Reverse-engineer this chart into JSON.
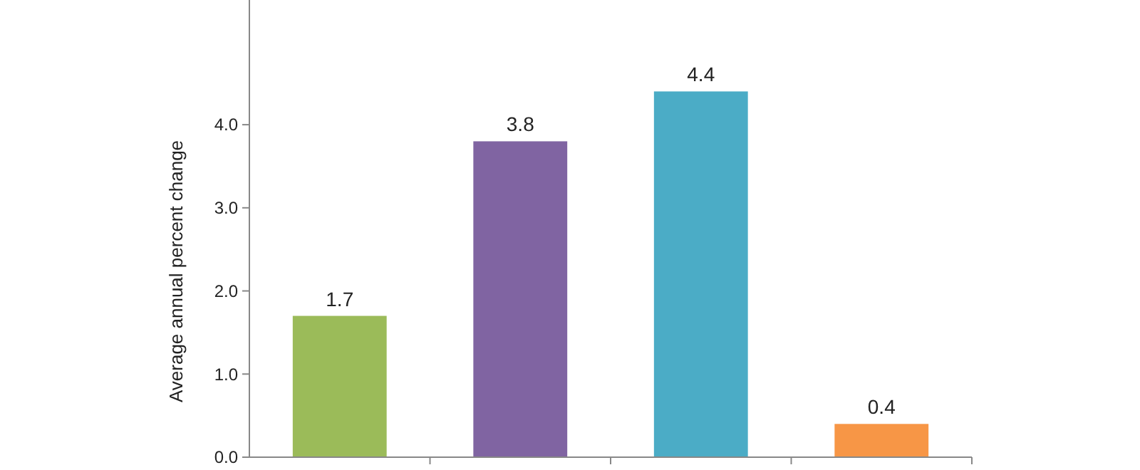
{
  "chart_data": {
    "type": "bar",
    "ylabel": "Average annual percent change",
    "categories": [
      null,
      null,
      null,
      null
    ],
    "values": [
      1.7,
      3.8,
      4.4,
      0.4
    ],
    "colors": [
      "#9bbb59",
      "#8064a2",
      "#4bacc6",
      "#f79646"
    ],
    "ylim": [
      0,
      5.5
    ],
    "yticks": [
      {
        "value": 0,
        "label": "0.0"
      },
      {
        "value": 1,
        "label": "1.0"
      },
      {
        "value": 2,
        "label": "2.0"
      },
      {
        "value": 3,
        "label": "3.0"
      },
      {
        "value": 4,
        "label": "4.0"
      }
    ],
    "data_labels": true,
    "grid": false
  }
}
